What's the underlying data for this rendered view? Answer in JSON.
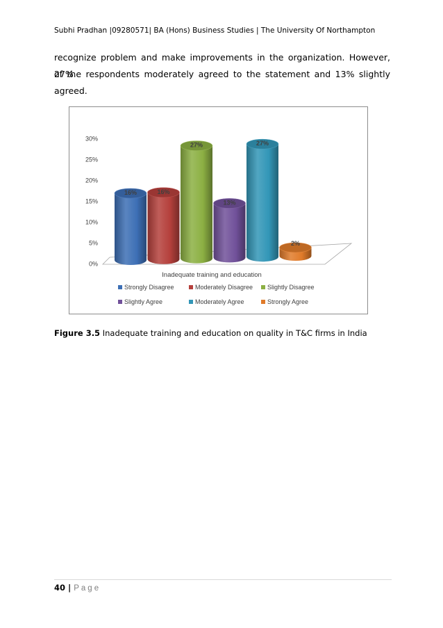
{
  "header": {
    "text": "Subhi Pradhan |09280571| BA (Hons) Business Studies | The University Of Northampton"
  },
  "paragraph": {
    "lines": [
      "recognize problem and make improvements in the organization. However, 27%",
      "of the respondents moderately agreed to the statement and 13% slightly",
      "agreed."
    ]
  },
  "chart_data": {
    "type": "bar",
    "style": "3d-cylinder",
    "categories": [
      "Inadequate training and education"
    ],
    "xlabel": "Inadequate training and education",
    "y_ticks": [
      "0%",
      "5%",
      "10%",
      "15%",
      "20%",
      "25%",
      "30%"
    ],
    "ylim": [
      0,
      30
    ],
    "grid": false,
    "legend_position": "bottom",
    "series": [
      {
        "name": "Strongly Disagree",
        "value": 16,
        "label": "16%",
        "color": "#3d6fb5"
      },
      {
        "name": "Moderately Disagree",
        "value": 16,
        "label": "16%",
        "color": "#b5403c"
      },
      {
        "name": "Slightly Disagree",
        "value": 27,
        "label": "27%",
        "color": "#8cb043"
      },
      {
        "name": "Slightly Agree",
        "value": 13,
        "label": "13%",
        "color": "#71519a"
      },
      {
        "name": "Moderately Agree",
        "value": 27,
        "label": "27%",
        "color": "#3296b7"
      },
      {
        "name": "Strongly Agree",
        "value": 2,
        "label": "2%",
        "color": "#e07b2a"
      }
    ]
  },
  "caption": {
    "label": "Figure 3.5",
    "text": " Inadequate training and education on quality in T&C firms in India"
  },
  "footer": {
    "page_number": "40",
    "separator": " | ",
    "page_word": "Page"
  }
}
